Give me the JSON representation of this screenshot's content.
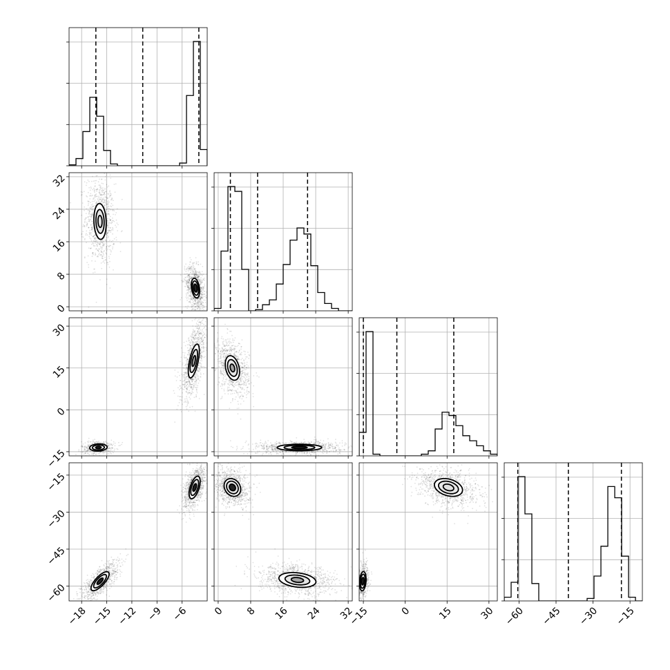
{
  "chart_data": {
    "type": "corner",
    "colors": {
      "line": "#000000",
      "grid": "#b0b0b0",
      "points": "#000000",
      "fill_light": "#e6e6e6",
      "fill_mid": "#9a9a9a",
      "fill_dark": "#000000"
    },
    "grid": true,
    "parameters": [
      {
        "range": [
          -19.5,
          -3
        ],
        "ticks": [
          -18,
          -15,
          -12,
          -9,
          -6
        ],
        "tick_labels": [
          "−18",
          "−15",
          "−12",
          "−9",
          "−6"
        ],
        "quantiles": [
          -16.3,
          -10.7,
          -4.0
        ],
        "hist_edges": [
          -19.5,
          -18.675,
          -17.85,
          -17.025,
          -16.2,
          -15.375,
          -14.55,
          -13.725,
          -12.9,
          -12.075,
          -11.25,
          -10.425,
          -9.6,
          -8.775,
          -7.95,
          -7.125,
          -6.3,
          -5.475,
          -4.65,
          -3.825,
          -3.0
        ],
        "hist_counts": [
          1,
          8,
          38,
          76,
          55,
          17,
          2,
          0,
          0,
          0,
          0,
          0,
          0,
          0,
          0,
          0,
          3,
          78,
          138,
          18
        ]
      },
      {
        "range": [
          -1,
          33
        ],
        "ticks": [
          0,
          8,
          16,
          24,
          32
        ],
        "tick_labels": [
          "0",
          "8",
          "16",
          "24",
          "32"
        ],
        "quantiles": [
          3.0,
          9.7,
          22.0
        ],
        "hist_edges": [
          -1,
          0.7,
          2.4,
          4.1,
          5.8,
          7.5,
          9.2,
          10.9,
          12.6,
          14.3,
          16,
          17.7,
          19.4,
          21.1,
          22.8,
          24.5,
          26.2,
          27.9,
          29.6,
          31.3,
          33
        ],
        "hist_counts": [
          2,
          49,
          102,
          98,
          34,
          0,
          1,
          5,
          9,
          22,
          38,
          58,
          68,
          63,
          37,
          15,
          6,
          2,
          0,
          0
        ]
      },
      {
        "range": [
          -16.5,
          33
        ],
        "ticks": [
          -15,
          0,
          15,
          30
        ],
        "tick_labels": [
          "−15",
          "0",
          "15",
          "30"
        ],
        "quantiles": [
          -15.0,
          -3.0,
          17.4
        ],
        "hist_edges": [
          -16.5,
          -14.025,
          -11.55,
          -9.075,
          -6.6,
          -4.125,
          -1.65,
          0.825,
          3.3,
          5.775,
          8.25,
          10.725,
          13.2,
          15.675,
          18.15,
          20.625,
          23.1,
          25.575,
          28.05,
          30.525,
          33.0
        ],
        "hist_counts": [
          14,
          74,
          1,
          0,
          0,
          0,
          0,
          0,
          0,
          1,
          3,
          16,
          26,
          24,
          18,
          12,
          9,
          6,
          3,
          1
        ]
      },
      {
        "range": [
          -66,
          -10
        ],
        "ticks": [
          -60,
          -45,
          -30,
          -15
        ],
        "tick_labels": [
          "−60",
          "−45",
          "−30",
          "−15"
        ],
        "quantiles": [
          -60.5,
          -40.0,
          -18.5
        ],
        "hist_edges": [
          -66,
          -63.2,
          -60.4,
          -57.6,
          -54.8,
          -52,
          -49.2,
          -46.4,
          -43.6,
          -40.8,
          -38,
          -35.2,
          -32.4,
          -29.6,
          -26.8,
          -24,
          -21.2,
          -18.4,
          -15.6,
          -12.8,
          -10
        ],
        "hist_counts": [
          3,
          15,
          100,
          70,
          14,
          0,
          0,
          0,
          0,
          0,
          0,
          0,
          2,
          20,
          44,
          92,
          83,
          36,
          3,
          0
        ]
      }
    ],
    "panels_2d": [
      {
        "row": 1,
        "col": 0,
        "clusters": [
          {
            "cx": -15.8,
            "cy": 21,
            "sx": 0.7,
            "sy": 4.2,
            "rho": -0.1,
            "n": 900,
            "levels": [
              0.35,
              0.7,
              1.05
            ],
            "core": "#dedede"
          },
          {
            "cx": -4.4,
            "cy": 4.6,
            "sx": 0.45,
            "sy": 2.2,
            "rho": -0.3,
            "n": 900,
            "levels": [
              0.45,
              0.8,
              1.1
            ],
            "core": "#000000"
          }
        ]
      },
      {
        "row": 2,
        "col": 0,
        "clusters": [
          {
            "cx": -16.0,
            "cy": -13.5,
            "sx": 0.8,
            "sy": 1.0,
            "rho": 0.1,
            "n": 400,
            "levels": [
              0.4,
              0.9,
              1.3
            ],
            "core": "#000000"
          },
          {
            "cx": -4.6,
            "cy": 17.5,
            "sx": 0.6,
            "sy": 5.5,
            "rho": 0.6,
            "n": 1000,
            "levels": [
              0.35,
              0.75,
              1.1
            ],
            "core": "#9a9a9a"
          }
        ]
      },
      {
        "row": 2,
        "col": 1,
        "clusters": [
          {
            "cx": 3.5,
            "cy": 15,
            "sx": 1.6,
            "sy": 4.0,
            "rho": -0.3,
            "n": 900,
            "levels": [
              0.35,
              0.75,
              1.1
            ],
            "core": "#9a9a9a"
          },
          {
            "cx": 20,
            "cy": -13.5,
            "sx": 4.2,
            "sy": 0.9,
            "rho": 0.0,
            "n": 900,
            "levels": [
              0.45,
              0.9,
              1.3
            ],
            "core": "#000000"
          }
        ]
      },
      {
        "row": 3,
        "col": 0,
        "clusters": [
          {
            "cx": -15.8,
            "cy": -58,
            "sx": 0.9,
            "sy": 3.2,
            "rho": 0.75,
            "n": 800,
            "levels": [
              0.4,
              0.85,
              1.2
            ],
            "core": "#000000"
          },
          {
            "cx": -4.5,
            "cy": -20,
            "sx": 0.55,
            "sy": 3.8,
            "rho": 0.55,
            "n": 900,
            "levels": [
              0.4,
              0.85,
              1.2
            ],
            "core": "#000000"
          }
        ]
      },
      {
        "row": 3,
        "col": 1,
        "clusters": [
          {
            "cx": 3.5,
            "cy": -20,
            "sx": 1.7,
            "sy": 3.0,
            "rho": -0.2,
            "n": 900,
            "levels": [
              0.45,
              0.85,
              1.2
            ],
            "core": "#000000"
          },
          {
            "cx": 19.5,
            "cy": -57.5,
            "sx": 3.8,
            "sy": 2.5,
            "rho": -0.25,
            "n": 1000,
            "levels": [
              0.4,
              0.8,
              1.2
            ],
            "core": "#9a9a9a"
          }
        ]
      },
      {
        "row": 3,
        "col": 2,
        "clusters": [
          {
            "cx": -15.2,
            "cy": -58,
            "sx": 0.9,
            "sy": 3.0,
            "rho": 0.2,
            "n": 500,
            "levels": [
              0.5,
              0.95,
              1.3
            ],
            "core": "#000000"
          },
          {
            "cx": 15.5,
            "cy": -20,
            "sx": 4.2,
            "sy": 3.0,
            "rho": -0.3,
            "n": 1000,
            "levels": [
              0.45,
              0.85,
              1.2
            ],
            "core": "#dedede"
          }
        ]
      }
    ]
  }
}
